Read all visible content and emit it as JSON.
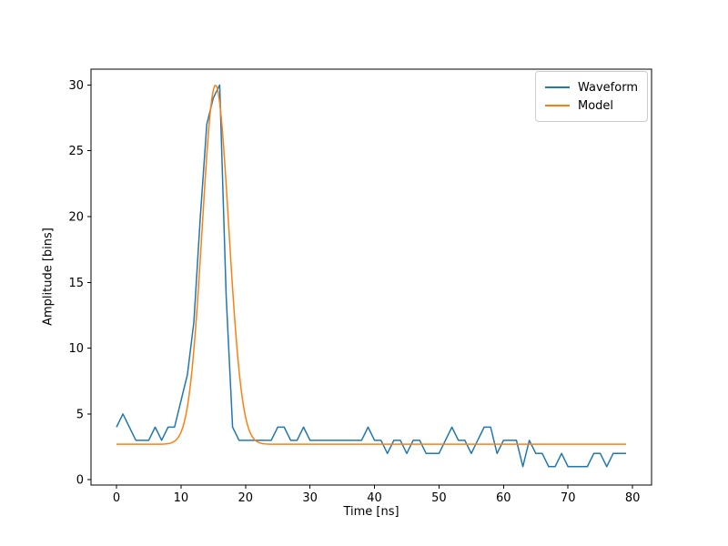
{
  "figure": {
    "background_color": "#ffffff",
    "axes_edge_color": "#000000",
    "legend_border_color": "#cccccc"
  },
  "chart_data": {
    "type": "line",
    "title": "",
    "xlabel": "Time [ns]",
    "ylabel": "Amplitude [bins]",
    "xlim": [
      -3.95,
      82.95
    ],
    "ylim": [
      -0.4,
      31.2
    ],
    "x_ticks": [
      0,
      10,
      20,
      30,
      40,
      50,
      60,
      70,
      80
    ],
    "y_ticks": [
      0,
      5,
      10,
      15,
      20,
      25,
      30
    ],
    "grid": false,
    "legend_position": "upper right",
    "series": [
      {
        "name": "Waveform",
        "color": "#1f77b4",
        "line_width": 1.5,
        "x_start": 0,
        "x_step": 1,
        "values": [
          4,
          5,
          4,
          3,
          3,
          3,
          4,
          3,
          4,
          4,
          6,
          8,
          12,
          20,
          27,
          29,
          30,
          14,
          4,
          3,
          3,
          3,
          3,
          3,
          3,
          4,
          4,
          3,
          3,
          4,
          3,
          3,
          3,
          3,
          3,
          3,
          3,
          3,
          3,
          4,
          3,
          3,
          2,
          3,
          3,
          2,
          3,
          3,
          2,
          2,
          2,
          3,
          4,
          3,
          3,
          2,
          3,
          4,
          4,
          2,
          3,
          3,
          3,
          1,
          3,
          2,
          2,
          1,
          1,
          2,
          1,
          1,
          1,
          1,
          2,
          2,
          1,
          2,
          2,
          2
        ]
      },
      {
        "name": "Model",
        "color": "#ff7f0e",
        "line_width": 1.5,
        "model": "gaussian_plus_baseline",
        "params": {
          "baseline": 2.7,
          "amplitude": 27.3,
          "center": 15.35,
          "sigma": 2.05
        },
        "x_range": [
          0,
          79
        ],
        "peak_value": 30
      }
    ]
  }
}
